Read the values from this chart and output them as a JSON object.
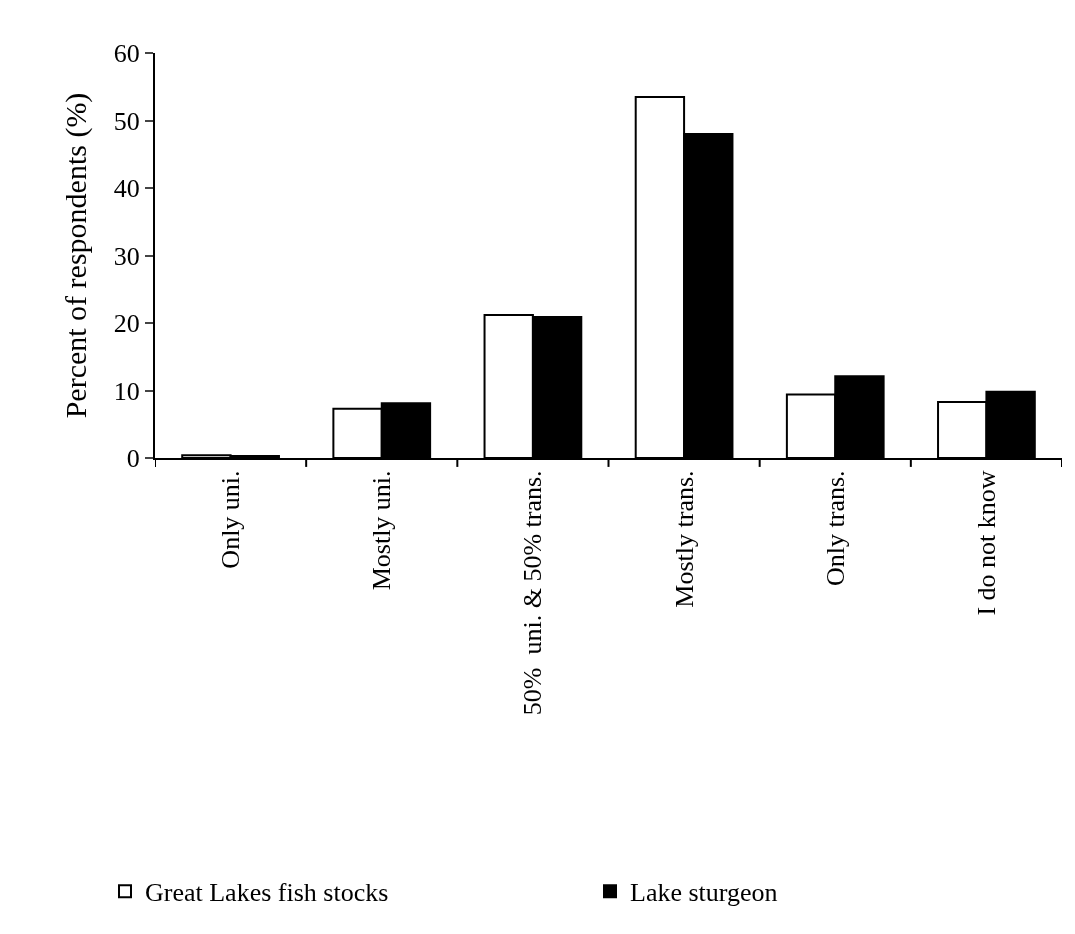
{
  "chart_data": {
    "type": "bar",
    "ylabel": "Percent of respondents (%)",
    "categories": [
      "Only uni.",
      "Mostly uni.",
      "50%  uni. & 50% trans.",
      "Mostly trans.",
      "Only trans.",
      "I do not know"
    ],
    "series": [
      {
        "name": "Great Lakes fish stocks",
        "color": "#ffffff",
        "values": [
          0.4,
          7.3,
          21.2,
          53.5,
          9.4,
          8.3
        ]
      },
      {
        "name": "Lake sturgeon",
        "color": "#000000",
        "values": [
          0.3,
          8.1,
          20.9,
          48.0,
          12.1,
          9.8
        ]
      }
    ],
    "ylim": [
      0,
      60
    ],
    "yticks": [
      0,
      10,
      20,
      30,
      40,
      50,
      60
    ],
    "grid": false,
    "legend": "bottom"
  }
}
